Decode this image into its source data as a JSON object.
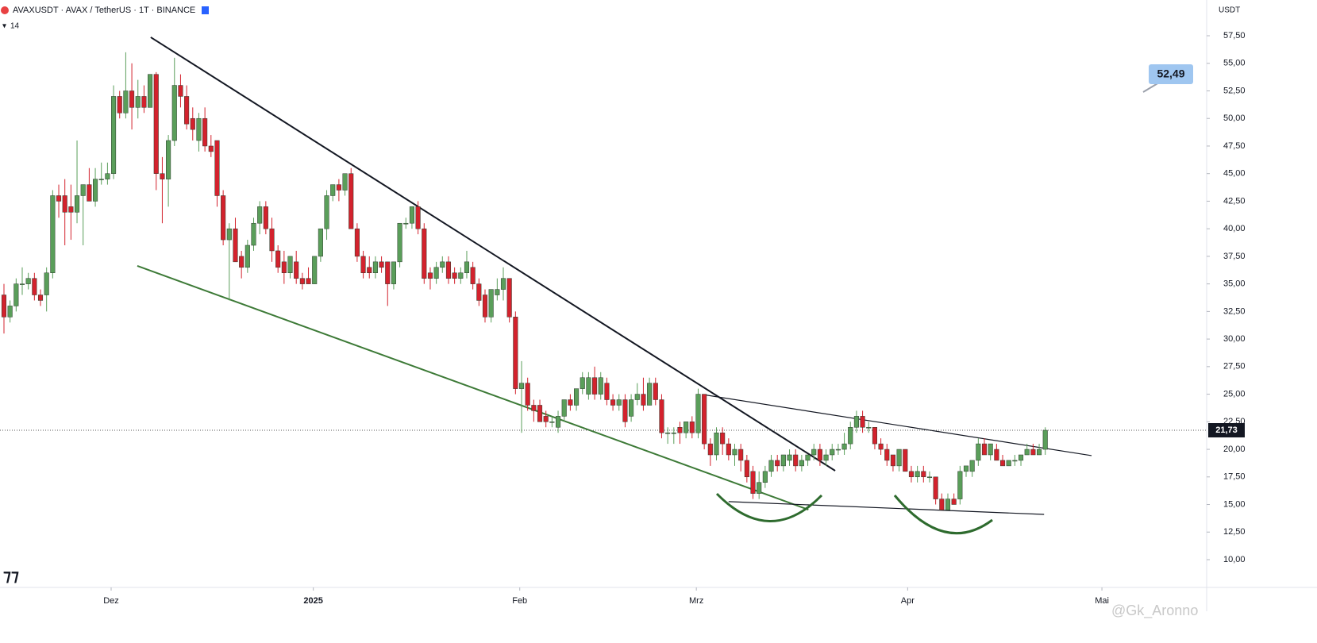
{
  "chart_data": {
    "type": "candlestick",
    "title": "AVAXUSDT · AVAX / TetherUS · 1T · BINANCE",
    "indicator": "14",
    "currency": "USDT",
    "callout": "52,49",
    "watermark": "@Gk_Aronno",
    "up_color": "#5a9e5a",
    "down_color": "#d3222d",
    "ylim": [
      7.48,
      60.74
    ],
    "yticks": [
      {
        "value": 10,
        "label": "10,00"
      },
      {
        "value": 12.5,
        "label": "12,50"
      },
      {
        "value": 15,
        "label": "15,00"
      },
      {
        "value": 17.5,
        "label": "17,50"
      },
      {
        "value": 20,
        "label": "20,00"
      },
      {
        "value": 22.5,
        "label": "22,50"
      },
      {
        "value": 25,
        "label": "25,00"
      },
      {
        "value": 27.5,
        "label": "27,50"
      },
      {
        "value": 30,
        "label": "30,00"
      },
      {
        "value": 32.5,
        "label": "32,50"
      },
      {
        "value": 35,
        "label": "35,00"
      },
      {
        "value": 37.5,
        "label": "37,50"
      },
      {
        "value": 40,
        "label": "40,00"
      },
      {
        "value": 42.5,
        "label": "42,50"
      },
      {
        "value": 45,
        "label": "45,00"
      },
      {
        "value": 47.5,
        "label": "47,50"
      },
      {
        "value": 50,
        "label": "50,00"
      },
      {
        "value": 52.5,
        "label": "52,50"
      },
      {
        "value": 55,
        "label": "55,00"
      },
      {
        "value": 57.5,
        "label": "57,50"
      }
    ],
    "xlim": [
      -0.65,
      197.5
    ],
    "xticks": [
      {
        "value": 17.6,
        "label": "Dez"
      },
      {
        "value": 50.8,
        "label": "2025"
      },
      {
        "value": 84.7,
        "label": "Feb"
      },
      {
        "value": 113.7,
        "label": "Mrz"
      },
      {
        "value": 148.4,
        "label": "Apr"
      },
      {
        "value": 180.3,
        "label": "Mai"
      }
    ],
    "last_price": {
      "value": 21.73,
      "label": "21,73"
    },
    "trendlines": [
      {
        "color": "#131722",
        "x": [
          24.1,
          136.5
        ],
        "y": [
          57.36,
          18.06
        ]
      },
      {
        "color": "#3d7a37",
        "x": [
          21.9,
          132.1
        ],
        "y": [
          36.63,
          14.53
        ]
      },
      {
        "color": "#131722",
        "x": [
          114.7,
          178.6
        ],
        "y": [
          24.97,
          19.43
        ]
      },
      {
        "color": "#131722",
        "x": [
          119,
          170.8
        ],
        "y": [
          15.26,
          14.1
        ]
      }
    ],
    "ohlc": [
      [
        34,
        35,
        30.5,
        32
      ],
      [
        32,
        33.5,
        31.5,
        33
      ],
      [
        33,
        35.5,
        32.5,
        35
      ],
      [
        35,
        36.5,
        34,
        35
      ],
      [
        35,
        36,
        34.5,
        35.5
      ],
      [
        35.5,
        36,
        33.5,
        34
      ],
      [
        34,
        34.5,
        33,
        33.5
      ],
      [
        34,
        36.5,
        32.5,
        36
      ],
      [
        36,
        43.5,
        35.5,
        43
      ],
      [
        43,
        44,
        41,
        42.5
      ],
      [
        43,
        44.5,
        38.5,
        41.5
      ],
      [
        42,
        44,
        39,
        41.5
      ],
      [
        41.5,
        48,
        40.5,
        43
      ],
      [
        43,
        44,
        38.5,
        44
      ],
      [
        44,
        45.5,
        43,
        42.5
      ],
      [
        42.5,
        45.5,
        42,
        44.5
      ],
      [
        44.5,
        46,
        44,
        44.5
      ],
      [
        44.5,
        46,
        44,
        45
      ],
      [
        45,
        53,
        44.5,
        52
      ],
      [
        52,
        52.5,
        50,
        50.5
      ],
      [
        50.5,
        56,
        50,
        52.5
      ],
      [
        52.5,
        55,
        49,
        51
      ],
      [
        51,
        53.5,
        50,
        52
      ],
      [
        52,
        53,
        50.5,
        51
      ],
      [
        51,
        54,
        51,
        54
      ],
      [
        54,
        54.2,
        43.5,
        45
      ],
      [
        45,
        46.5,
        40.5,
        44.5
      ],
      [
        44.5,
        48.5,
        42,
        48
      ],
      [
        48,
        55.5,
        47.5,
        53
      ],
      [
        53,
        54,
        51,
        52
      ],
      [
        52,
        53,
        49,
        49.5
      ],
      [
        50,
        51,
        48,
        49
      ],
      [
        48,
        50.5,
        47,
        50
      ],
      [
        50,
        51,
        47,
        47.5
      ],
      [
        47.5,
        48.5,
        46.5,
        47
      ],
      [
        48,
        48,
        42,
        43
      ],
      [
        43,
        43.5,
        38.5,
        39
      ],
      [
        39,
        40.5,
        33.5,
        40
      ],
      [
        40,
        41,
        37,
        37
      ],
      [
        37.5,
        38,
        35.5,
        36.5
      ],
      [
        36.5,
        39,
        36,
        38.5
      ],
      [
        38.5,
        41,
        38,
        40.5
      ],
      [
        40.5,
        42.5,
        39.5,
        42
      ],
      [
        42,
        42.5,
        39.5,
        40
      ],
      [
        40,
        41,
        37,
        38
      ],
      [
        38,
        38.5,
        36,
        36.5
      ],
      [
        37,
        38,
        35,
        36
      ],
      [
        36,
        37.5,
        35.5,
        37.5
      ],
      [
        37,
        38,
        35,
        35.5
      ],
      [
        35.5,
        36,
        34.5,
        35
      ],
      [
        35.5,
        36.5,
        35,
        35
      ],
      [
        35,
        37.5,
        35,
        37.5
      ],
      [
        37.5,
        40,
        37,
        40
      ],
      [
        40,
        43.5,
        39,
        43
      ],
      [
        43,
        44,
        42.5,
        44
      ],
      [
        44,
        44.5,
        42.5,
        43.5
      ],
      [
        43.5,
        45,
        43,
        45
      ],
      [
        45,
        45.5,
        40,
        40
      ],
      [
        40,
        40.5,
        37,
        37.5
      ],
      [
        37.5,
        38,
        35.5,
        36
      ],
      [
        36.5,
        37.5,
        35.5,
        36
      ],
      [
        36,
        37.5,
        35.5,
        37
      ],
      [
        37,
        37.5,
        36,
        36.5
      ],
      [
        37,
        37,
        33,
        35
      ],
      [
        35,
        37,
        34.5,
        37
      ],
      [
        37,
        40.5,
        36.5,
        40.5
      ],
      [
        40.5,
        41,
        40,
        40.5
      ],
      [
        40.5,
        42,
        40,
        42
      ],
      [
        42,
        42.5,
        39.5,
        40
      ],
      [
        40,
        40.5,
        35,
        35.5
      ],
      [
        36,
        36.5,
        34.5,
        35.5
      ],
      [
        35.5,
        37,
        35,
        36.5
      ],
      [
        36.5,
        37.5,
        36,
        37
      ],
      [
        37,
        37.5,
        35,
        35.5
      ],
      [
        36,
        36.5,
        35,
        35.5
      ],
      [
        35.5,
        36.5,
        35,
        36
      ],
      [
        36,
        38,
        35.5,
        37
      ],
      [
        36.5,
        37,
        34.5,
        35
      ],
      [
        35,
        35.5,
        33,
        33.5
      ],
      [
        34,
        34.5,
        31.5,
        32
      ],
      [
        32,
        34.5,
        31.5,
        34.5
      ],
      [
        34,
        35.5,
        33.5,
        34.5
      ],
      [
        34.5,
        36.5,
        33.5,
        35.5
      ],
      [
        35.5,
        35.5,
        31.5,
        32
      ],
      [
        32,
        32.5,
        25,
        25.5
      ],
      [
        25.5,
        28,
        21.5,
        26
      ],
      [
        26,
        26.5,
        23.5,
        24
      ],
      [
        24,
        24.5,
        22.5,
        23.5
      ],
      [
        24,
        24.5,
        22.5,
        22.5
      ],
      [
        23,
        23.5,
        22,
        22.5
      ],
      [
        22.5,
        23,
        22,
        22.5
      ],
      [
        22,
        23.5,
        21.5,
        23
      ],
      [
        23,
        24.5,
        22.5,
        24.5
      ],
      [
        24.5,
        25,
        23.5,
        24
      ],
      [
        24,
        25.5,
        23.5,
        25.5
      ],
      [
        25.5,
        27,
        25,
        26.5
      ],
      [
        25,
        27,
        24.5,
        26.5
      ],
      [
        26.5,
        27.5,
        24.5,
        25
      ],
      [
        25,
        27,
        24.5,
        26.5
      ],
      [
        26,
        26.5,
        24,
        24.5
      ],
      [
        24.5,
        25,
        23.5,
        24
      ],
      [
        24,
        25,
        23.5,
        24.5
      ],
      [
        24.5,
        25,
        22,
        22.5
      ],
      [
        23,
        25,
        22.5,
        24.5
      ],
      [
        24.5,
        26,
        24,
        25
      ],
      [
        25,
        26.5,
        23.5,
        24
      ],
      [
        24,
        26.5,
        24,
        26
      ],
      [
        26,
        26.5,
        24,
        24.5
      ],
      [
        24.5,
        25,
        21,
        21.5
      ],
      [
        21.5,
        22,
        20.5,
        21.5
      ],
      [
        21.5,
        22,
        20.5,
        21.5
      ],
      [
        22,
        22.5,
        20.5,
        21.5
      ],
      [
        21.5,
        22.5,
        21,
        22.5
      ],
      [
        22.5,
        23,
        21,
        21.5
      ],
      [
        21.5,
        25.5,
        21,
        25
      ],
      [
        25,
        25,
        20,
        20.5
      ],
      [
        20.5,
        21,
        18.5,
        19.5
      ],
      [
        19.5,
        22,
        19,
        21.5
      ],
      [
        21.5,
        22,
        19.5,
        20.5
      ],
      [
        20.5,
        21,
        19,
        19.5
      ],
      [
        19.5,
        20.5,
        18.5,
        20
      ],
      [
        20,
        20.5,
        18,
        19
      ],
      [
        19,
        19.5,
        17,
        17.5
      ],
      [
        18,
        18.5,
        15.5,
        16
      ],
      [
        16,
        18,
        15.5,
        17
      ],
      [
        17,
        18.5,
        16.5,
        18
      ],
      [
        18,
        19.5,
        17.5,
        19
      ],
      [
        19,
        19.5,
        18,
        18.5
      ],
      [
        18.5,
        19.5,
        18,
        19.5
      ],
      [
        19,
        20,
        18.5,
        19.5
      ],
      [
        19.5,
        20,
        18,
        18.5
      ],
      [
        18.5,
        19.5,
        18,
        19
      ],
      [
        19,
        19.5,
        18.5,
        19.5
      ],
      [
        19.5,
        20.5,
        19,
        20
      ],
      [
        20,
        20.5,
        18.5,
        19
      ],
      [
        19,
        20,
        18.5,
        19.5
      ],
      [
        19.5,
        20.5,
        19,
        20
      ],
      [
        20,
        20.5,
        19.5,
        20
      ],
      [
        20,
        21.5,
        19.5,
        20.5
      ],
      [
        20.5,
        22.5,
        20,
        22
      ],
      [
        22,
        23.5,
        21.5,
        23
      ],
      [
        23,
        23.5,
        21.5,
        22
      ],
      [
        22,
        22.5,
        21.5,
        22
      ],
      [
        22,
        22,
        20,
        20.5
      ],
      [
        20.5,
        21,
        19.5,
        20
      ],
      [
        20,
        20.5,
        18.5,
        19
      ],
      [
        19.5,
        19.5,
        18,
        18.5
      ],
      [
        18.5,
        20,
        18,
        20
      ],
      [
        20,
        20,
        18,
        18
      ],
      [
        18,
        18.5,
        17,
        17.5
      ],
      [
        17.5,
        18.5,
        17,
        18
      ],
      [
        18,
        18.5,
        17,
        17.5
      ],
      [
        17.5,
        18,
        17,
        17.5
      ],
      [
        17.5,
        17.5,
        15,
        15.5
      ],
      [
        15.5,
        16,
        14.5,
        14.5
      ],
      [
        14.5,
        16,
        14.5,
        15.5
      ],
      [
        15.5,
        16,
        15,
        15
      ],
      [
        15.5,
        18.5,
        15,
        18
      ],
      [
        18,
        18.5,
        17.5,
        18.5
      ],
      [
        18,
        19,
        17.5,
        19
      ],
      [
        19,
        21,
        18.5,
        20.5
      ],
      [
        20.5,
        21,
        19.5,
        19.5
      ],
      [
        19.5,
        20.5,
        19,
        20.5
      ],
      [
        20,
        20.5,
        19,
        19
      ],
      [
        19,
        19.5,
        18.5,
        18.5
      ],
      [
        18.5,
        19,
        18.5,
        19
      ],
      [
        19,
        19.5,
        18.5,
        19
      ],
      [
        19,
        19.5,
        18.5,
        19.5
      ],
      [
        19.5,
        20.5,
        19.5,
        20
      ],
      [
        20,
        20.5,
        19.5,
        19.5
      ],
      [
        19.5,
        20.5,
        19.5,
        20
      ],
      [
        20,
        22,
        19.5,
        21.73
      ]
    ]
  }
}
